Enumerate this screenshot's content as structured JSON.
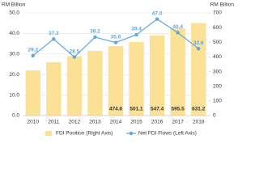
{
  "chart_data": {
    "type": "bar-line",
    "y_axis_label": "RM Billion",
    "y2_axis_label": "RM Billion",
    "categories": [
      "2010",
      "2011",
      "2012",
      "2013",
      "2014",
      "2015",
      "2016",
      "2017",
      "2018"
    ],
    "series": [
      {
        "name": "FDI Position (Right Axis)",
        "type": "bar",
        "axis": "y2",
        "color": "#fae196",
        "values": [
          308,
          364,
          406,
          441,
          474.6,
          501.1,
          547.4,
          595.5,
          631.2
        ],
        "value_labels": [
          null,
          null,
          null,
          null,
          "474.6",
          "501.1",
          "547.4",
          "595.5",
          "631.2"
        ]
      },
      {
        "name": "Net FDI Flows (Left Axis)",
        "type": "line",
        "axis": "y",
        "color": "#5fa8d8",
        "values": [
          29.2,
          37.3,
          28.5,
          38.2,
          35.6,
          39.4,
          47.0,
          40.4,
          32.6
        ],
        "value_labels": [
          "29.2",
          "37.3",
          "28.5",
          "38.2",
          "35.6",
          "39.4",
          "47.0",
          "40.4",
          "32.6"
        ]
      }
    ],
    "ylim": [
      0,
      50
    ],
    "yticks": [
      {
        "value": 0,
        "label": "0.0"
      },
      {
        "value": 10,
        "label": "10.0"
      },
      {
        "value": 20,
        "label": "20.0"
      },
      {
        "value": 30,
        "label": "30.0"
      },
      {
        "value": 40,
        "label": "40.0"
      },
      {
        "value": 50,
        "label": "50.0"
      }
    ],
    "y2lim": [
      0,
      700
    ],
    "y2ticks": [
      0,
      100,
      200,
      300,
      400,
      500,
      600,
      700
    ],
    "grid": true,
    "legend": "bottom"
  }
}
